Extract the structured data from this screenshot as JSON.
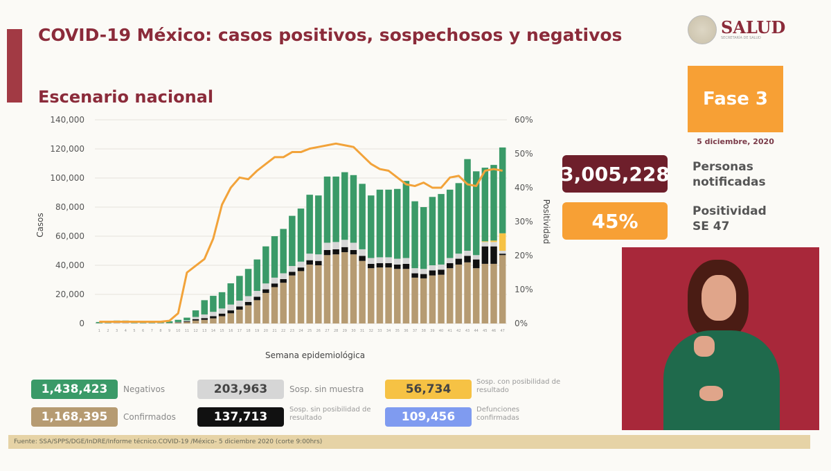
{
  "header": {
    "title": "COVID-19 México: casos positivos, sospechosos y negativos",
    "subtitle": "Escenario nacional",
    "logo_text": "SALUD",
    "logo_subtext": "SECRETARÍA DE SALUD"
  },
  "side": {
    "fase": "Fase 3",
    "fecha": "5 diciembre, 2020",
    "personas_value": "3,005,228",
    "personas_label_1": "Personas",
    "personas_label_2": "notificadas",
    "positividad_value": "45%",
    "positividad_label_1": "Positividad",
    "positividad_label_2": "SE 47"
  },
  "legend": [
    {
      "value": "1,438,423",
      "label": "Negativos",
      "color": "#3a9a68"
    },
    {
      "value": "203,963",
      "label": "Sosp. sin muestra",
      "color": "#d6d6d6"
    },
    {
      "value": "56,734",
      "label": "Sosp. con posibilidad de resultado",
      "color": "#f6c244"
    },
    {
      "value": "1,168,395",
      "label": "Confirmados",
      "color": "#b69b72"
    },
    {
      "value": "137,713",
      "label": "Sosp. sin posibilidad de resultado",
      "color": "#111111"
    },
    {
      "value": "109,456",
      "label": "Defunciones confirmadas",
      "color": "#7f9bf0"
    }
  ],
  "footer": "Fuente: SSA/SPPS/DGE/InDRE/Informe técnico.COVID-19 /México- 5 diciembre 2020 (corte 9:00hrs)",
  "chart_data": {
    "type": "bar",
    "title": "Escenario nacional",
    "xlabel": "Semana epidemiológica",
    "ylabel": "Casos",
    "y2label": "Positividad",
    "ylim": [
      0,
      140000
    ],
    "y2lim": [
      0,
      60
    ],
    "yticks": [
      "0",
      "20,000",
      "40,000",
      "60,000",
      "80,000",
      "100,000",
      "120,000",
      "140,000"
    ],
    "y2ticks": [
      "0%",
      "10%",
      "20%",
      "30%",
      "40%",
      "50%",
      "60%"
    ],
    "stacked": true,
    "categories": [
      1,
      2,
      3,
      4,
      5,
      6,
      7,
      8,
      9,
      10,
      11,
      12,
      13,
      14,
      15,
      16,
      17,
      18,
      19,
      20,
      21,
      22,
      23,
      24,
      25,
      26,
      27,
      28,
      29,
      30,
      31,
      32,
      33,
      34,
      35,
      36,
      37,
      38,
      39,
      40,
      41,
      42,
      43,
      44,
      45,
      46,
      47
    ],
    "series": [
      {
        "name": "Confirmados",
        "color": "#b69b72",
        "values": [
          100,
          200,
          300,
          300,
          200,
          200,
          200,
          200,
          200,
          500,
          1000,
          2000,
          2500,
          3500,
          5000,
          7000,
          9500,
          12500,
          16000,
          21000,
          25000,
          28000,
          33000,
          36000,
          40500,
          40000,
          47000,
          47500,
          49000,
          47500,
          43000,
          38000,
          38500,
          38500,
          37500,
          37500,
          31500,
          31000,
          33000,
          33500,
          38000,
          40500,
          42000,
          38000,
          41000,
          41000,
          47000
        ]
      },
      {
        "name": "Sosp. sin posibilidad de resultado",
        "color": "#111111",
        "values": [
          0,
          0,
          0,
          0,
          0,
          0,
          0,
          0,
          0,
          200,
          500,
          1000,
          1200,
          1500,
          1800,
          2000,
          2200,
          2300,
          2400,
          2500,
          2500,
          2500,
          2500,
          2500,
          3000,
          3000,
          3500,
          3500,
          3500,
          3000,
          3500,
          3000,
          3000,
          3000,
          3000,
          3500,
          3000,
          3000,
          3500,
          3500,
          3500,
          4000,
          4500,
          6000,
          12000,
          12000,
          1000
        ]
      },
      {
        "name": "Sosp. sin muestra",
        "color": "#d6d6d6",
        "values": [
          100,
          100,
          200,
          200,
          100,
          100,
          100,
          100,
          100,
          300,
          600,
          1500,
          2500,
          3000,
          3500,
          4000,
          4000,
          4000,
          4000,
          4000,
          4000,
          4000,
          4000,
          4000,
          4500,
          4500,
          5000,
          5000,
          5000,
          5000,
          4500,
          4000,
          4000,
          4000,
          4000,
          4000,
          3500,
          3500,
          3500,
          3500,
          3500,
          3500,
          3500,
          3000,
          3000,
          3000,
          2000
        ]
      },
      {
        "name": "Sosp. con posibilidad de resultado",
        "color": "#f6c244",
        "values": [
          0,
          0,
          0,
          0,
          0,
          0,
          0,
          0,
          0,
          0,
          0,
          0,
          0,
          0,
          0,
          0,
          0,
          0,
          0,
          0,
          0,
          0,
          0,
          0,
          0,
          0,
          0,
          0,
          0,
          0,
          0,
          0,
          0,
          0,
          0,
          0,
          0,
          0,
          0,
          0,
          0,
          0,
          0,
          0,
          500,
          1000,
          12000
        ]
      },
      {
        "name": "Negativos",
        "color": "#3a9a68",
        "values": [
          800,
          1000,
          1500,
          1500,
          1200,
          1200,
          1200,
          1200,
          1200,
          1500,
          1900,
          4500,
          9800,
          11000,
          11200,
          14600,
          17000,
          18700,
          21600,
          25500,
          28500,
          30500,
          34500,
          36500,
          40500,
          40500,
          45500,
          45000,
          46500,
          46500,
          45000,
          43000,
          46500,
          46500,
          48000,
          53000,
          46000,
          42500,
          47000,
          48500,
          47000,
          48500,
          63000,
          57600,
          50600,
          52000,
          59000
        ]
      }
    ],
    "line": {
      "name": "Positividad",
      "color": "#f2a33a",
      "values": [
        0.5,
        0.5,
        0.5,
        0.5,
        0.5,
        0.5,
        0.5,
        0.5,
        0.8,
        3,
        15,
        17,
        19,
        25,
        35,
        40,
        43,
        42.5,
        45,
        47,
        49,
        49,
        50.5,
        50.5,
        51.5,
        52,
        52.5,
        53,
        52.5,
        52,
        49.5,
        47,
        45.5,
        45,
        43,
        41,
        40.5,
        41.5,
        40,
        40,
        43,
        43.5,
        41,
        40.5,
        45,
        45.5,
        45
      ]
    }
  }
}
